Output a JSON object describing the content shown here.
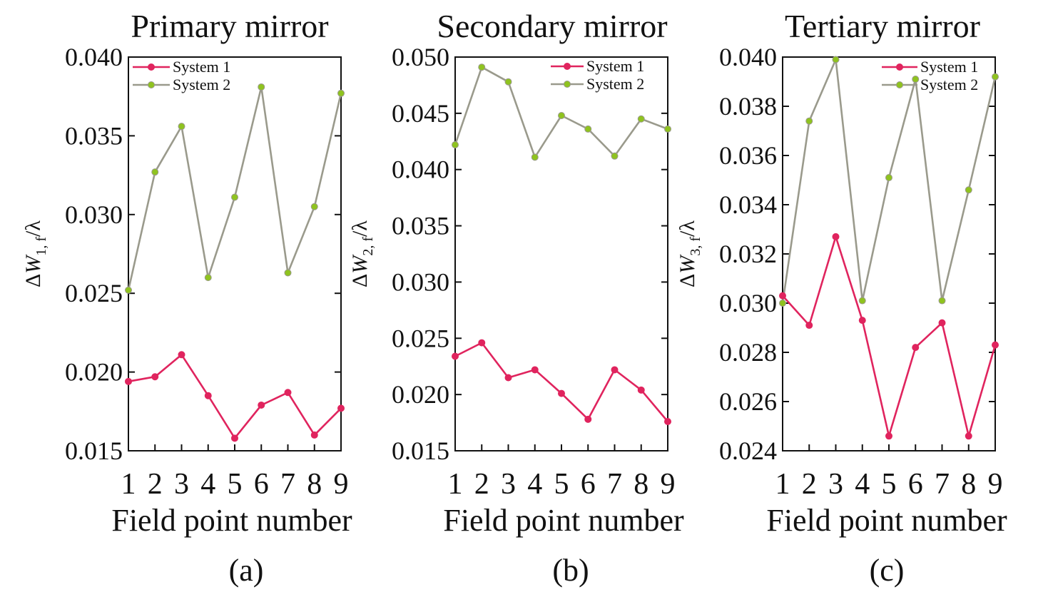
{
  "figure": {
    "panels": [
      {
        "label": "(a)",
        "ylabel": {
          "prefix": "Δ",
          "var": "W",
          "sub": "1, f",
          "suffix": "/λ"
        }
      },
      {
        "label": "(b)",
        "ylabel": {
          "prefix": "Δ",
          "var": "W",
          "sub": "2, f",
          "suffix": "/λ"
        }
      },
      {
        "label": "(c)",
        "ylabel": {
          "prefix": "Δ",
          "var": "W",
          "sub": "3, f",
          "suffix": "/λ"
        }
      }
    ]
  },
  "colors": {
    "system1": "#e0245e",
    "system2_line": "#9a9a8c",
    "system2_marker": "#8fc31f",
    "axis": "#111111"
  },
  "chart_data": [
    {
      "type": "line",
      "title": "Primary mirror",
      "xlabel": "Field point number",
      "ylabel": "ΔW1, f/λ",
      "x": [
        1,
        2,
        3,
        4,
        5,
        6,
        7,
        8,
        9
      ],
      "xlim": [
        1,
        9
      ],
      "ylim": [
        0.015,
        0.04
      ],
      "yticks": [
        "0.015",
        "0.020",
        "0.025",
        "0.030",
        "0.035",
        "0.040"
      ],
      "ytick_values": [
        0.015,
        0.02,
        0.025,
        0.03,
        0.035,
        0.04
      ],
      "legend_position": "top-left",
      "series": [
        {
          "name": "System 1",
          "values": [
            0.0194,
            0.0197,
            0.0211,
            0.0185,
            0.0158,
            0.0179,
            0.0187,
            0.016,
            0.0177
          ]
        },
        {
          "name": "System 2",
          "values": [
            0.0252,
            0.0327,
            0.0356,
            0.026,
            0.0311,
            0.0381,
            0.0263,
            0.0305,
            0.0377
          ]
        }
      ]
    },
    {
      "type": "line",
      "title": "Secondary mirror",
      "xlabel": "Field point number",
      "ylabel": "ΔW2, f/λ",
      "x": [
        1,
        2,
        3,
        4,
        5,
        6,
        7,
        8,
        9
      ],
      "xlim": [
        1,
        9
      ],
      "ylim": [
        0.015,
        0.05
      ],
      "yticks": [
        "0.015",
        "0.020",
        "0.025",
        "0.030",
        "0.035",
        "0.040",
        "0.045",
        "0.050"
      ],
      "ytick_values": [
        0.015,
        0.02,
        0.025,
        0.03,
        0.035,
        0.04,
        0.045,
        0.05
      ],
      "legend_position": "top-right",
      "series": [
        {
          "name": "System 1",
          "values": [
            0.0234,
            0.0246,
            0.0215,
            0.0222,
            0.0201,
            0.0178,
            0.0222,
            0.0204,
            0.0176
          ]
        },
        {
          "name": "System 2",
          "values": [
            0.0422,
            0.0491,
            0.0478,
            0.0411,
            0.0448,
            0.0436,
            0.0412,
            0.0445,
            0.0436
          ]
        }
      ]
    },
    {
      "type": "line",
      "title": "Tertiary mirror",
      "xlabel": "Field point number",
      "ylabel": "ΔW3, f/λ",
      "x": [
        1,
        2,
        3,
        4,
        5,
        6,
        7,
        8,
        9
      ],
      "xlim": [
        1,
        9
      ],
      "ylim": [
        0.024,
        0.04
      ],
      "yticks": [
        "0.024",
        "0.026",
        "0.028",
        "0.030",
        "0.032",
        "0.034",
        "0.036",
        "0.038",
        "0.040"
      ],
      "ytick_values": [
        0.024,
        0.026,
        0.028,
        0.03,
        0.032,
        0.034,
        0.036,
        0.038,
        0.04
      ],
      "legend_position": "top-right",
      "series": [
        {
          "name": "System 1",
          "values": [
            0.0303,
            0.0291,
            0.0327,
            0.0293,
            0.0246,
            0.0282,
            0.0292,
            0.0246,
            0.0283
          ]
        },
        {
          "name": "System 2",
          "values": [
            0.03,
            0.0374,
            0.0399,
            0.0301,
            0.0351,
            0.0391,
            0.0301,
            0.0346,
            0.0392
          ]
        }
      ]
    }
  ]
}
